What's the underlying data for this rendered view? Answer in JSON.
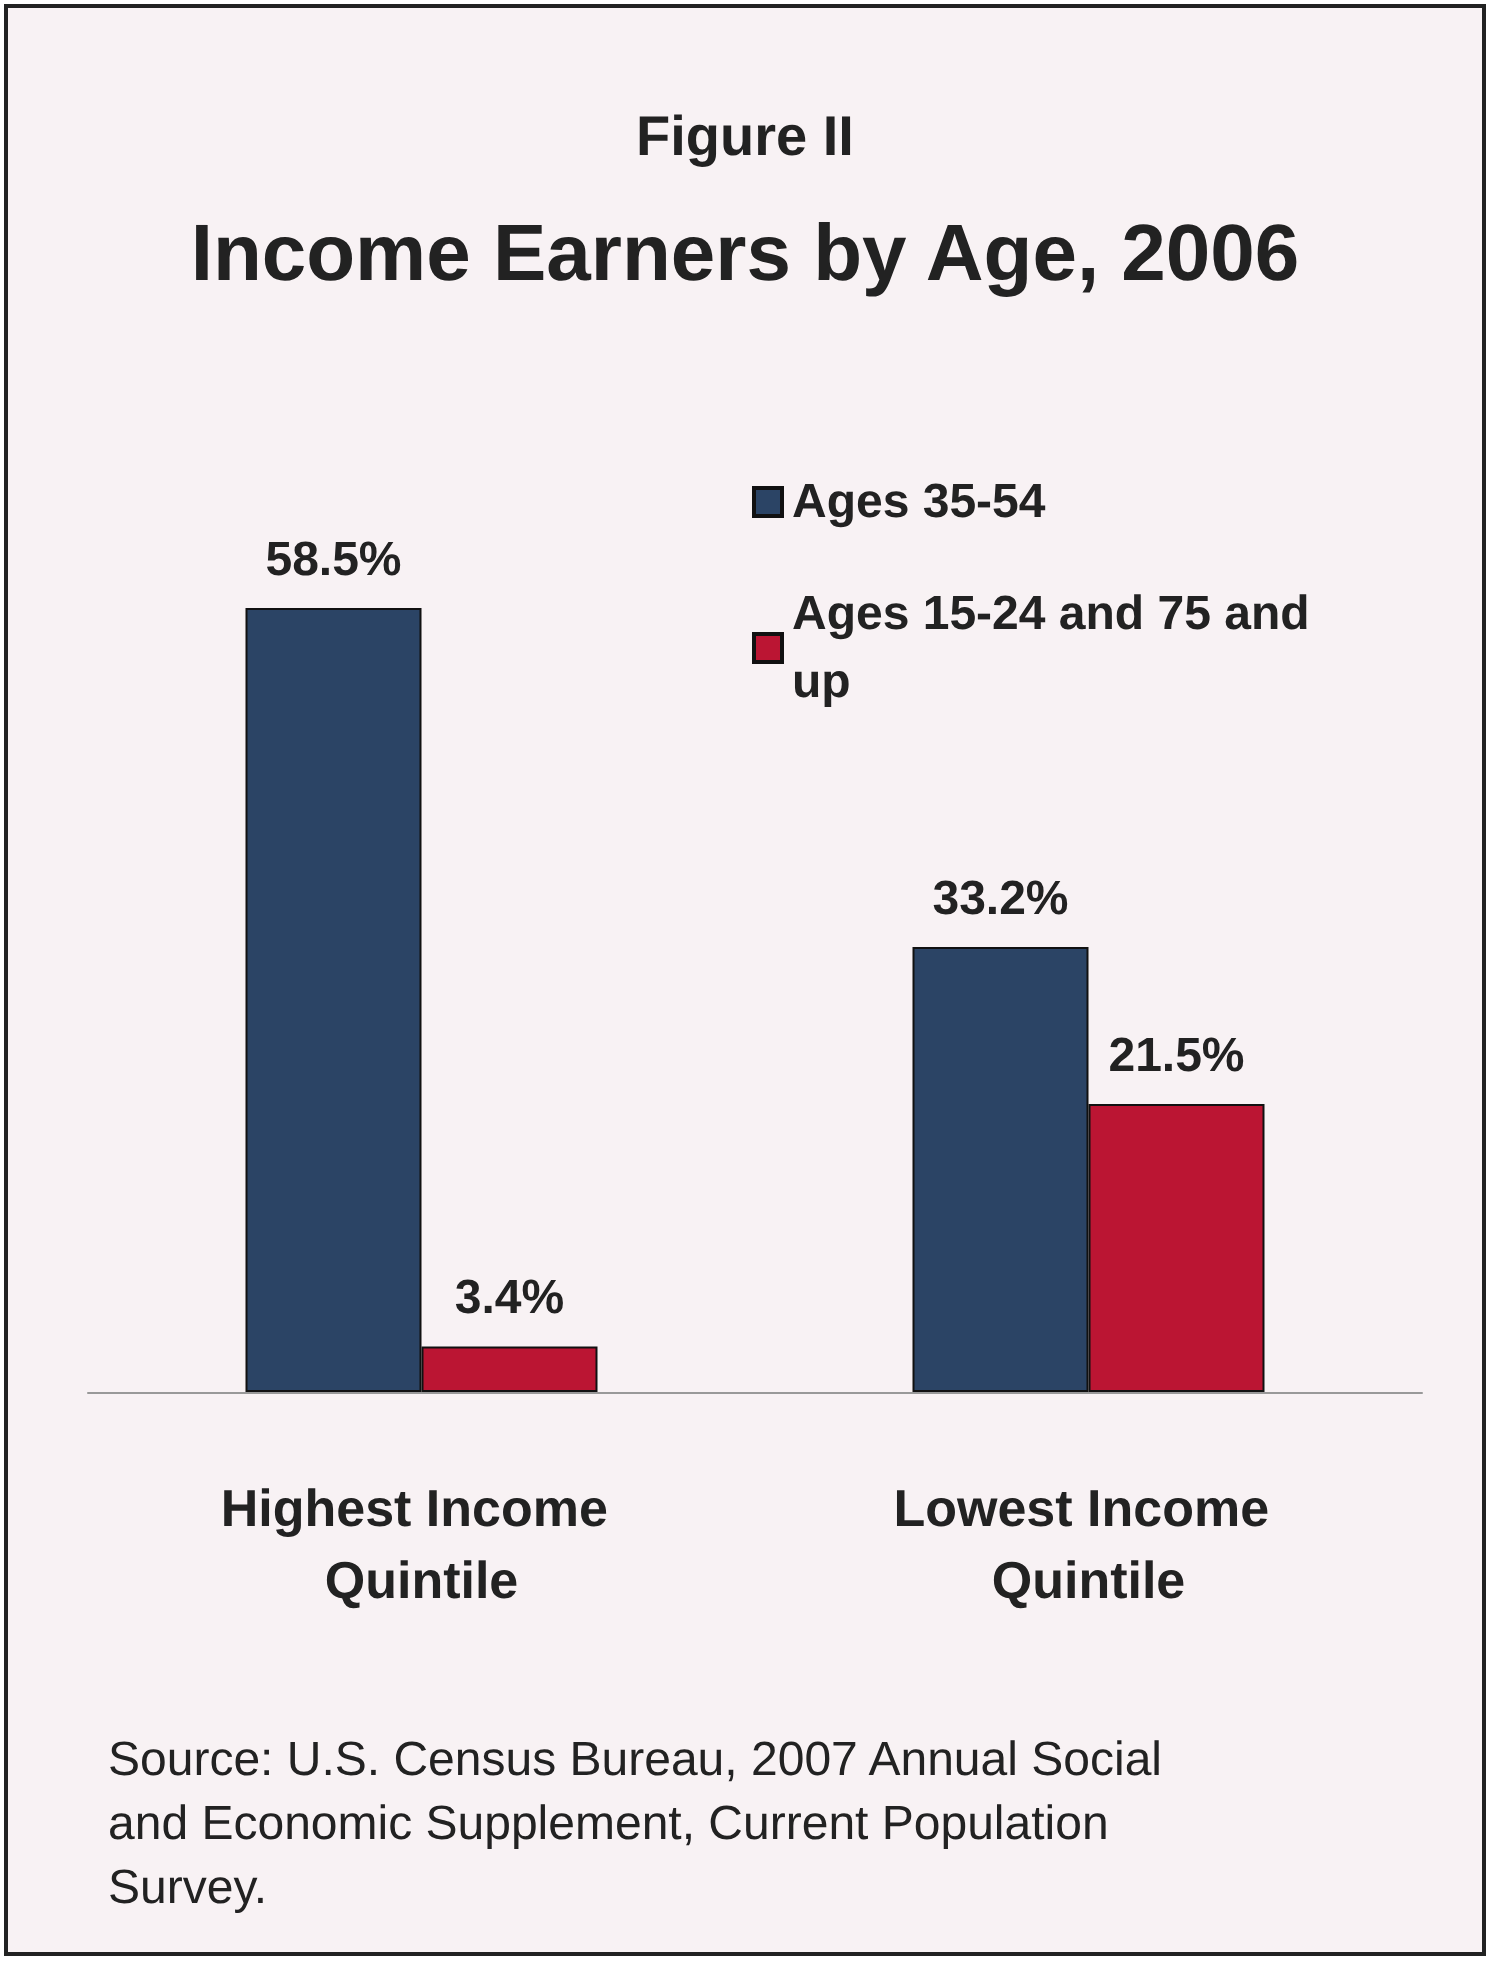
{
  "chart_data": {
    "type": "bar",
    "subtitle": "Figure II",
    "title": "Income Earners by Age, 2006",
    "categories": [
      "Highest Income Quintile",
      "Lowest Income Quintile"
    ],
    "series": [
      {
        "name": "Ages 35-54",
        "color": "#2b4465",
        "values": [
          58.5,
          33.2
        ],
        "value_labels": [
          "58.5%",
          "33.2%"
        ]
      },
      {
        "name": "Ages 15-24 and 75 and up",
        "color": "#bb1533",
        "values": [
          3.4,
          21.5
        ],
        "value_labels": [
          "3.4%",
          "21.5%"
        ]
      }
    ],
    "legend": "top right",
    "grid": false,
    "annotations": [
      "Source: U.S. Census Bureau, 2007 Annual Social and Economic Supplement, Current Population Survey."
    ]
  }
}
